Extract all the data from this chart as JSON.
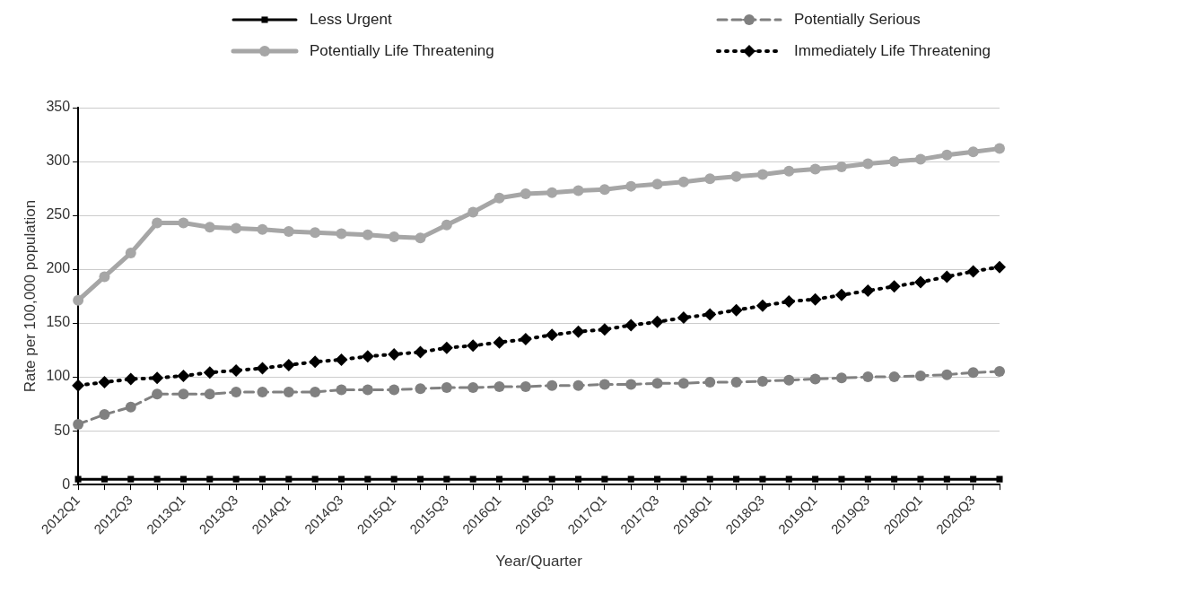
{
  "chart_data": {
    "type": "line",
    "xlabel": "Year/Quarter",
    "ylabel": "Rate per 100,000 population",
    "categories": [
      "2012Q1",
      null,
      "2012Q3",
      null,
      "2013Q1",
      null,
      "2013Q3",
      null,
      "2014Q1",
      null,
      "2014Q3",
      null,
      "2015Q1",
      null,
      "2015Q3",
      null,
      "2016Q1",
      null,
      "2016Q3",
      null,
      "2017Q1",
      null,
      "2017Q3",
      null,
      "2018Q1",
      null,
      "2018Q3",
      null,
      "2019Q1",
      null,
      "2019Q3",
      null,
      "2020Q1",
      null,
      "2020Q3",
      null
    ],
    "series": [
      {
        "name": "Less Urgent",
        "color": "#000000",
        "marker": "square",
        "line_style": "solid",
        "values": [
          5,
          5,
          5,
          5,
          5,
          5,
          5,
          5,
          5,
          5,
          5,
          5,
          5,
          5,
          5,
          5,
          5,
          5,
          5,
          5,
          5,
          5,
          5,
          5,
          5,
          5,
          5,
          5,
          5,
          5,
          5,
          5,
          5,
          5,
          5,
          5
        ]
      },
      {
        "name": "Potentially Serious",
        "color": "#808080",
        "marker": "circle",
        "line_style": "dashed",
        "values": [
          56,
          65,
          72,
          84,
          84,
          84,
          86,
          86,
          86,
          86,
          88,
          88,
          88,
          89,
          90,
          90,
          91,
          91,
          92,
          92,
          93,
          93,
          94,
          94,
          95,
          95,
          96,
          97,
          98,
          99,
          100,
          100,
          101,
          102,
          104,
          105
        ]
      },
      {
        "name": "Potentially Life Threatening",
        "color": "#a6a6a6",
        "marker": "circle",
        "line_style": "solid",
        "values": [
          171,
          193,
          215,
          243,
          243,
          239,
          238,
          237,
          235,
          234,
          233,
          232,
          230,
          229,
          241,
          253,
          266,
          270,
          271,
          273,
          274,
          277,
          279,
          281,
          284,
          286,
          288,
          291,
          293,
          295,
          298,
          300,
          302,
          306,
          309,
          312
        ]
      },
      {
        "name": "Immediately Life Threatening",
        "color": "#000000",
        "marker": "diamond",
        "line_style": "dotted",
        "values": [
          92,
          95,
          98,
          99,
          101,
          104,
          106,
          108,
          111,
          114,
          116,
          119,
          121,
          123,
          127,
          129,
          132,
          135,
          139,
          142,
          144,
          148,
          151,
          155,
          158,
          162,
          166,
          170,
          172,
          176,
          180,
          184,
          188,
          193,
          198,
          202
        ]
      }
    ],
    "ylim": [
      0,
      350
    ],
    "yticks": [
      0,
      50,
      100,
      150,
      200,
      250,
      300,
      350
    ],
    "grid": "y",
    "legend": "top"
  }
}
